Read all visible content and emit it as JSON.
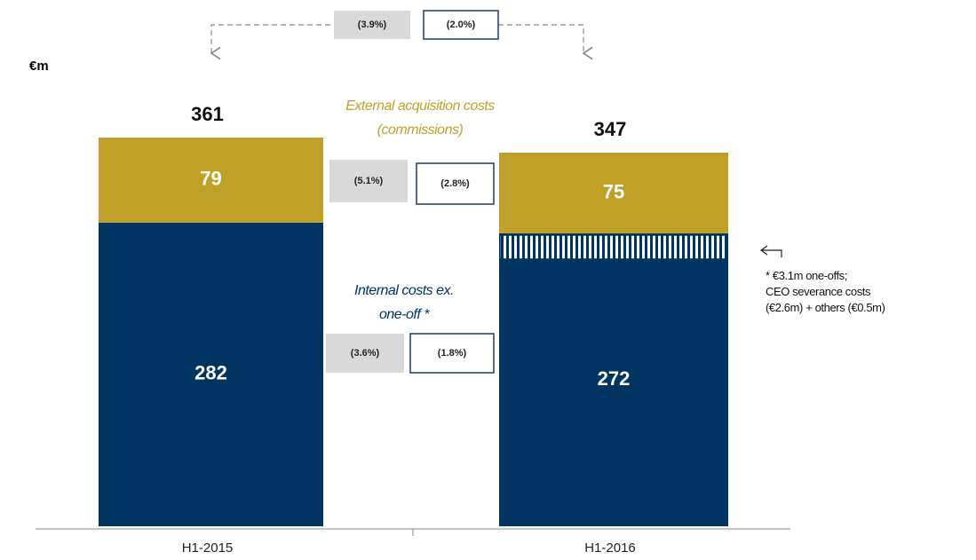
{
  "chart_data": {
    "type": "stacked_bar",
    "unit": "€m",
    "categories": [
      "H1-2015",
      "H1-2016"
    ],
    "series": [
      {
        "name": "Internal costs ex. one-off *",
        "color": "#003461",
        "values": [
          282,
          272
        ]
      },
      {
        "name": "External acquisition costs (commissions)",
        "color": "#bfa12a",
        "values": [
          79,
          75
        ]
      }
    ],
    "totals": [
      361,
      347
    ],
    "annotations": {
      "total_change": [
        "(3.9%)",
        "(2.0%)"
      ],
      "external_change": [
        "(5.1%)",
        "(2.8%)"
      ],
      "internal_change": [
        "(3.6%)",
        "(1.8%)"
      ]
    },
    "note": [
      "* €3.1m one-offs;",
      "CEO severance costs",
      "(€2.6m) + others (€0.5m)"
    ]
  }
}
